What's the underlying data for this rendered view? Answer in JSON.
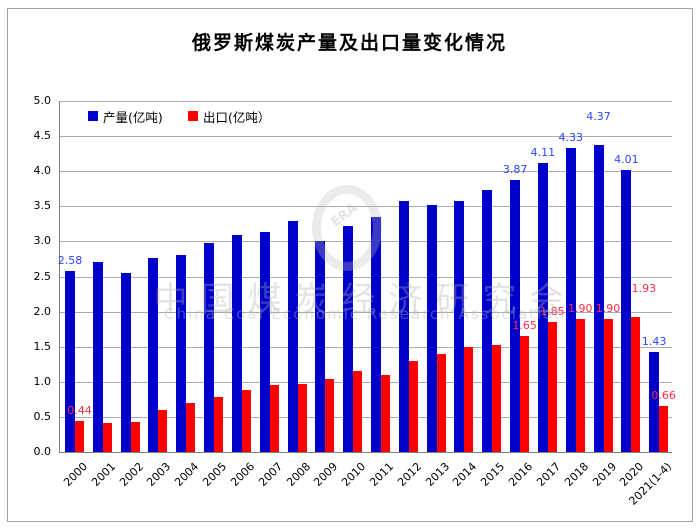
{
  "title": "俄罗斯煤炭产量及出口量变化情况",
  "watermark": {
    "cn": "中国煤炭经济研究会",
    "en": "China Coal Economic Research Association",
    "logo": "ERA"
  },
  "chart_data": {
    "type": "bar",
    "title": "俄罗斯煤炭产量及出口量变化情况",
    "categories": [
      "2000",
      "2001",
      "2002",
      "2003",
      "2004",
      "2005",
      "2006",
      "2007",
      "2008",
      "2009",
      "2010",
      "2011",
      "2012",
      "2013",
      "2014",
      "2015",
      "2016",
      "2017",
      "2018",
      "2019",
      "2020",
      "2021(1-4)"
    ],
    "series": [
      {
        "name": "产量(亿吨)",
        "color": "#0000CB",
        "label_color": "#2B46FF",
        "values": [
          2.58,
          2.7,
          2.55,
          2.76,
          2.81,
          2.98,
          3.09,
          3.14,
          3.29,
          3.01,
          3.22,
          3.35,
          3.57,
          3.52,
          3.58,
          3.73,
          3.87,
          4.11,
          4.33,
          4.37,
          4.01,
          1.43
        ]
      },
      {
        "name": "出口(亿吨）",
        "color": "#FE0000",
        "label_color": "#FF2E44",
        "values": [
          0.44,
          0.41,
          0.43,
          0.6,
          0.7,
          0.78,
          0.88,
          0.96,
          0.97,
          1.04,
          1.16,
          1.1,
          1.3,
          1.39,
          1.5,
          1.52,
          1.65,
          1.85,
          1.9,
          1.9,
          1.93,
          0.66
        ]
      }
    ],
    "labeled_indices": [
      0,
      16,
      17,
      18,
      19,
      20,
      21
    ],
    "label_decimals": 2,
    "label_offsets": [
      {
        "series": 0,
        "index": 19,
        "dy": -18
      },
      {
        "series": 1,
        "index": 20,
        "dy": -18,
        "dx": 8
      }
    ],
    "ylim": [
      0,
      5
    ],
    "ytick_step": 0.5,
    "ytick_decimals": 1,
    "grid": true,
    "legend_position": "top-left-inside",
    "colors": {
      "grid": "#ABABAB",
      "axis": "#808080",
      "frame_border": "#A3A3A3"
    }
  }
}
